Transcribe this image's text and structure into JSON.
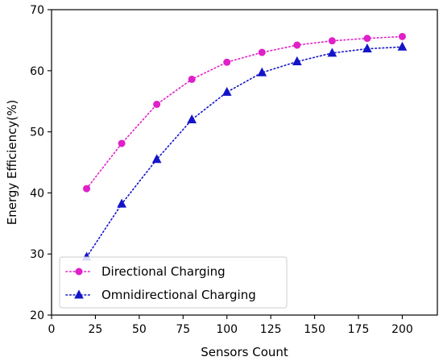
{
  "chart_data": {
    "type": "line",
    "title": "",
    "xlabel": "Sensors Count",
    "ylabel": "Energy Efficiency(%)",
    "xlim": [
      0,
      220
    ],
    "ylim": [
      20,
      70
    ],
    "xticks": [
      0,
      25,
      50,
      75,
      100,
      125,
      150,
      175,
      200
    ],
    "yticks": [
      20,
      30,
      40,
      50,
      60,
      70
    ],
    "grid": false,
    "legend_position": "bottom-left",
    "x": [
      20,
      40,
      60,
      80,
      100,
      120,
      140,
      160,
      180,
      200
    ],
    "series": [
      {
        "name": "Directional Charging",
        "color": "#e020c8",
        "line_style": "dotted",
        "marker": "circle",
        "values": [
          40.7,
          48.1,
          54.5,
          58.6,
          61.4,
          63.0,
          64.2,
          64.9,
          65.3,
          65.6
        ]
      },
      {
        "name": "Omnidirectional Charging",
        "color": "#1414c8",
        "line_style": "dotted",
        "marker": "triangle",
        "values": [
          29.5,
          38.2,
          45.5,
          52.0,
          56.5,
          59.7,
          61.5,
          62.9,
          63.6,
          63.9
        ]
      }
    ]
  }
}
